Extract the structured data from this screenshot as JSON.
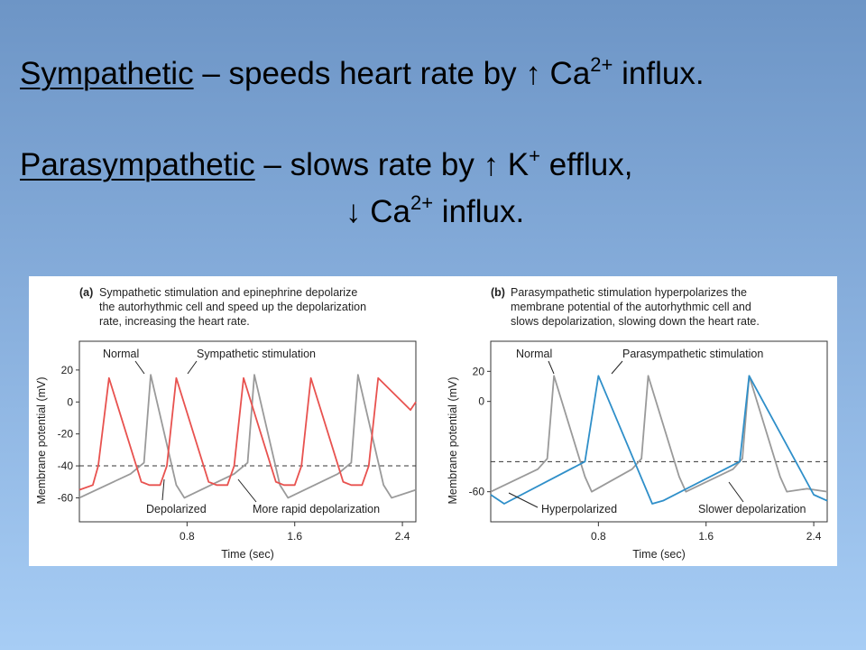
{
  "heading": {
    "line1": {
      "term": "Sympathetic",
      "rest_before": " – speeds heart rate by ",
      "arrow": "↑",
      "ion": " Ca",
      "charge": "2+",
      "rest_after": " influx."
    },
    "line2": {
      "term": "Parasympathetic",
      "rest_before": " – slows rate by ",
      "arrow": "↑",
      "ion": " K",
      "charge": "+",
      "rest_after": " efflux,"
    },
    "line3": {
      "arrow": "↓",
      "ion": " Ca",
      "charge": "2+",
      "rest_after": " influx."
    }
  },
  "chart_data": [
    {
      "type": "line",
      "caption_label": "(a)",
      "caption_lines": [
        "Sympathetic stimulation and epinephrine depolarize",
        "the autorhythmic cell and speed up the depolarization",
        "rate, increasing the heart rate."
      ],
      "xlabel": "Time (sec)",
      "ylabel": "Membrane potential (mV)",
      "xticks": [
        "0.8",
        "1.6",
        "2.4"
      ],
      "yticks": [
        "20",
        "0",
        "-20",
        "-40",
        "-60"
      ],
      "xlim": [
        0,
        2.5
      ],
      "ylim": [
        -75,
        38
      ],
      "threshold": -40,
      "annotations": [
        "Normal",
        "Sympathetic stimulation",
        "Depolarized",
        "More rapid depolarization"
      ],
      "colors": {
        "normal": "#9a9a9a",
        "stimulated": "#e8524f"
      },
      "series": [
        {
          "key": "normal",
          "x": [
            0,
            0.38,
            0.48,
            0.53,
            0.72,
            0.78,
            1.15,
            1.25,
            1.3,
            1.49,
            1.55,
            1.92,
            2.02,
            2.07,
            2.26,
            2.32,
            2.5
          ],
          "y": [
            -60,
            -45,
            -38,
            17,
            -52,
            -60,
            -45,
            -38,
            17,
            -52,
            -60,
            -45,
            -38,
            17,
            -52,
            -60,
            -55
          ]
        },
        {
          "key": "stimulated",
          "x": [
            0,
            0.1,
            0.14,
            0.22,
            0.46,
            0.52,
            0.6,
            0.65,
            0.72,
            0.96,
            1.02,
            1.1,
            1.15,
            1.22,
            1.46,
            1.52,
            1.6,
            1.65,
            1.72,
            1.96,
            2.02,
            2.1,
            2.15,
            2.22,
            2.46,
            2.5
          ],
          "y": [
            -55,
            -52,
            -40,
            15,
            -50,
            -52,
            -52,
            -40,
            15,
            -50,
            -52,
            -52,
            -40,
            15,
            -50,
            -52,
            -52,
            -40,
            15,
            -50,
            -52,
            -52,
            -40,
            15,
            -5,
            0
          ]
        }
      ]
    },
    {
      "type": "line",
      "caption_label": "(b)",
      "caption_lines": [
        "Parasympathetic stimulation hyperpolarizes the",
        "membrane potential of the autorhythmic cell and",
        "slows depolarization, slowing down the heart rate."
      ],
      "xlabel": "Time (sec)",
      "ylabel": "Membrane potential (mV)",
      "xticks": [
        "0.8",
        "1.6",
        "2.4"
      ],
      "yticks": [
        "20",
        "0",
        "-60"
      ],
      "xlim": [
        0,
        2.5
      ],
      "ylim": [
        -80,
        40
      ],
      "threshold": -40,
      "annotations": [
        "Normal",
        "Parasympathetic stimulation",
        "Hyperpolarized",
        "Slower depolarization"
      ],
      "colors": {
        "normal": "#9a9a9a",
        "stimulated": "#2f8fc9"
      },
      "series": [
        {
          "key": "normal",
          "x": [
            0,
            0.35,
            0.42,
            0.47,
            0.7,
            0.75,
            1.05,
            1.12,
            1.17,
            1.4,
            1.45,
            1.8,
            1.87,
            1.92,
            2.15,
            2.2,
            2.35,
            2.5
          ],
          "y": [
            -60,
            -45,
            -38,
            17,
            -50,
            -60,
            -45,
            -38,
            17,
            -50,
            -60,
            -45,
            -38,
            17,
            -50,
            -60,
            -58,
            -60
          ]
        },
        {
          "key": "stimulated",
          "x": [
            0,
            0.1,
            0.7,
            0.8,
            1.2,
            1.28,
            1.85,
            1.92,
            2.4,
            2.5
          ],
          "y": [
            -62,
            -68,
            -40,
            17,
            -68,
            -66,
            -40,
            17,
            -62,
            -66
          ]
        }
      ]
    }
  ]
}
